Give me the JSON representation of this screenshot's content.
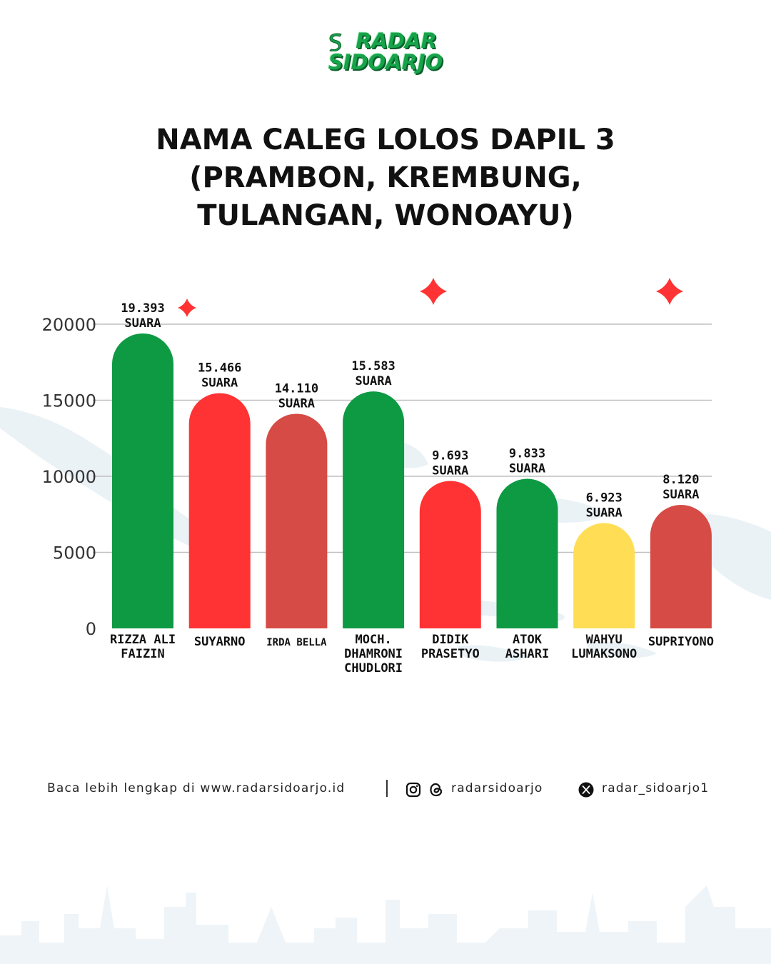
{
  "logo": {
    "line1": "RADAR",
    "line2": "SIDOARJO",
    "color": "#16a34a"
  },
  "title": {
    "line1": "NAMA CALEG LOLOS DAPIL 3",
    "line2": "(PRAMBON, KREMBUNG,",
    "line3": "TULANGAN, WONOAYU)"
  },
  "chart_data": {
    "type": "bar",
    "categories": [
      [
        "RIZZA ALI",
        "FAIZIN"
      ],
      [
        "SUYARNO"
      ],
      [
        "IRDA BELLA"
      ],
      [
        "MOCH.",
        "DHAMRONI",
        "CHUDLORI"
      ],
      [
        "DIDIK",
        "PRASETYO"
      ],
      [
        "ATOK",
        "ASHARI"
      ],
      [
        "WAHYU",
        "LUMAKSONO"
      ],
      [
        "SUPRIYONO"
      ]
    ],
    "values": [
      19393,
      15466,
      14110,
      15583,
      9693,
      9833,
      6923,
      8120
    ],
    "value_labels": [
      [
        "19.393",
        "SUARA"
      ],
      [
        "15.466",
        "SUARA"
      ],
      [
        "14.110",
        "SUARA"
      ],
      [
        "15.583",
        "SUARA"
      ],
      [
        "9.693",
        "SUARA"
      ],
      [
        "9.833",
        "SUARA"
      ],
      [
        "6.923",
        "SUARA"
      ],
      [
        "8.120",
        "SUARA"
      ]
    ],
    "colors": [
      "#0e9a43",
      "#ff3333",
      "#d64b45",
      "#0e9a43",
      "#ff3333",
      "#0e9a43",
      "#ffdd55",
      "#d64b45"
    ],
    "yticks": [
      "0",
      "5000",
      "10000",
      "15000",
      "20000"
    ],
    "ytick_values": [
      0,
      5000,
      10000,
      15000,
      20000
    ],
    "ylim": [
      0,
      20000
    ],
    "grid": true,
    "accent_color": "#ff3333"
  },
  "footer": {
    "read_more": "Baca lebih lengkap di www.radarsidoarjo.id",
    "social_handle": "radarsidoarjo",
    "x_handle": "radar_sidoarjo1",
    "icons": [
      "instagram-icon",
      "threads-icon",
      "x-icon"
    ]
  }
}
